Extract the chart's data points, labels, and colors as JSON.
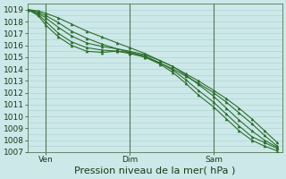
{
  "background_color": "#cce8e8",
  "grid_color": "#aad0d0",
  "line_color": "#2d6e2d",
  "marker_color": "#2d6e2d",
  "xlabel": "Pression niveau de la mer( hPa )",
  "xlabel_fontsize": 8,
  "tick_label_fontsize": 6.5,
  "xtick_labels": [
    "Ven",
    "Dim",
    "Sam"
  ],
  "xtick_positions": [
    0.07,
    0.4,
    0.73
  ],
  "xlim": [
    0.0,
    1.0
  ],
  "ylim": [
    1007,
    1019.5
  ],
  "yticks": [
    1007,
    1008,
    1009,
    1010,
    1011,
    1012,
    1013,
    1014,
    1015,
    1016,
    1017,
    1018,
    1019
  ],
  "lines": [
    {
      "x": [
        0.0,
        0.04,
        0.07,
        0.12,
        0.17,
        0.23,
        0.29,
        0.35,
        0.4,
        0.46,
        0.52,
        0.57,
        0.62,
        0.67,
        0.73,
        0.78,
        0.83,
        0.88,
        0.93,
        0.98
      ],
      "y": [
        1019.0,
        1018.9,
        1018.7,
        1018.3,
        1017.8,
        1017.2,
        1016.7,
        1016.2,
        1015.8,
        1015.3,
        1014.7,
        1014.2,
        1013.6,
        1013.0,
        1012.2,
        1011.5,
        1010.7,
        1009.8,
        1008.8,
        1007.8
      ]
    },
    {
      "x": [
        0.0,
        0.04,
        0.07,
        0.12,
        0.17,
        0.23,
        0.29,
        0.35,
        0.4,
        0.46,
        0.52,
        0.57,
        0.62,
        0.67,
        0.73,
        0.78,
        0.83,
        0.88,
        0.93,
        0.98
      ],
      "y": [
        1019.0,
        1018.8,
        1018.5,
        1017.9,
        1017.2,
        1016.6,
        1016.1,
        1015.7,
        1015.4,
        1015.0,
        1014.5,
        1014.0,
        1013.4,
        1012.8,
        1012.0,
        1011.2,
        1010.3,
        1009.4,
        1008.4,
        1007.5
      ]
    },
    {
      "x": [
        0.0,
        0.04,
        0.07,
        0.12,
        0.17,
        0.23,
        0.29,
        0.35,
        0.4,
        0.46,
        0.52,
        0.57,
        0.62,
        0.67,
        0.73,
        0.78,
        0.83,
        0.88,
        0.93,
        0.98
      ],
      "y": [
        1019.0,
        1018.7,
        1018.3,
        1017.5,
        1016.8,
        1016.2,
        1015.9,
        1015.7,
        1015.5,
        1015.2,
        1014.7,
        1014.2,
        1013.5,
        1012.7,
        1011.7,
        1010.7,
        1009.7,
        1008.8,
        1008.0,
        1007.4
      ]
    },
    {
      "x": [
        0.0,
        0.04,
        0.07,
        0.12,
        0.17,
        0.23,
        0.29,
        0.35,
        0.4,
        0.46,
        0.52,
        0.57,
        0.62,
        0.67,
        0.73,
        0.78,
        0.83,
        0.88,
        0.93,
        0.98
      ],
      "y": [
        1019.0,
        1018.6,
        1018.0,
        1017.0,
        1016.3,
        1015.8,
        1015.6,
        1015.5,
        1015.4,
        1015.1,
        1014.5,
        1013.9,
        1013.1,
        1012.2,
        1011.2,
        1010.2,
        1009.2,
        1008.3,
        1007.8,
        1007.3
      ]
    },
    {
      "x": [
        0.0,
        0.04,
        0.07,
        0.12,
        0.17,
        0.23,
        0.29,
        0.35,
        0.4,
        0.46,
        0.52,
        0.57,
        0.62,
        0.67,
        0.73,
        0.78,
        0.83,
        0.88,
        0.93,
        0.98
      ],
      "y": [
        1019.0,
        1018.5,
        1017.7,
        1016.7,
        1016.0,
        1015.5,
        1015.4,
        1015.5,
        1015.3,
        1015.0,
        1014.4,
        1013.7,
        1012.8,
        1011.8,
        1010.8,
        1009.8,
        1008.8,
        1008.0,
        1007.5,
        1007.1
      ]
    }
  ]
}
